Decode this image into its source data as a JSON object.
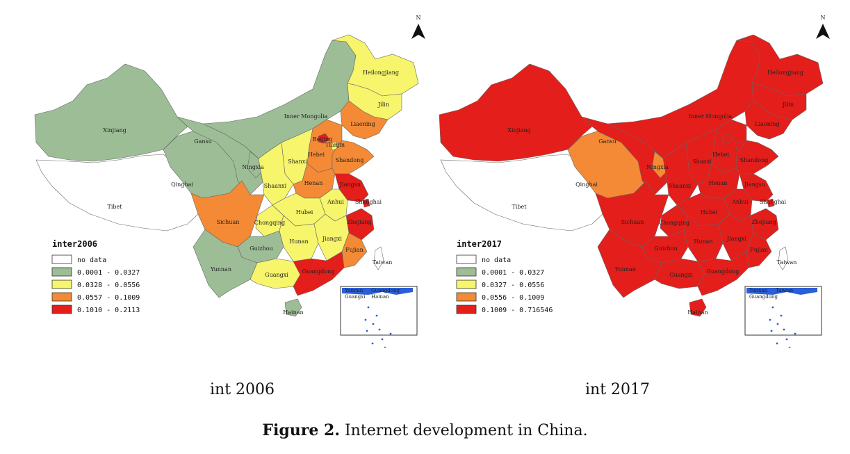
{
  "figure": {
    "number_label": "Figure 2.",
    "caption_text": " Internet development in China."
  },
  "north_label": "N",
  "maps": [
    {
      "subcaption": "int 2006",
      "legend": {
        "title": "inter2006",
        "items": [
          {
            "label": "no data",
            "color": "#ffffff"
          },
          {
            "label": "0.0001 - 0.0327",
            "color": "#9dbd96"
          },
          {
            "label": "0.0328 - 0.0556",
            "color": "#f6f56b"
          },
          {
            "label": "0.0557 - 0.1009",
            "color": "#f48a35"
          },
          {
            "label": "0.1010 - 0.2113",
            "color": "#e41e1a"
          }
        ]
      },
      "provinces": {
        "Xinjiang": {
          "label": "Xinjiang",
          "class": 1
        },
        "Tibet": {
          "label": "Tibet",
          "class": 0
        },
        "Qinghai": {
          "label": "Qinghai",
          "class": 1
        },
        "Gansu": {
          "label": "Gansu",
          "class": 1
        },
        "InnerMongolia": {
          "label": "Inner Mongolia",
          "class": 1
        },
        "Heilongjiang": {
          "label": "Heilongjiang",
          "class": 2
        },
        "Jilin": {
          "label": "Jilin",
          "class": 2
        },
        "Liaoning": {
          "label": "Liaoning",
          "class": 3
        },
        "Beijing": {
          "label": "Beijing",
          "class": 4
        },
        "Tianjin": {
          "label": "Tianjin",
          "class": 2
        },
        "Hebei": {
          "label": "Hebei",
          "class": 3
        },
        "Ningxia": {
          "label": "Ningxia",
          "class": 1
        },
        "Shanxi": {
          "label": "Shanxi",
          "class": 2
        },
        "Shandong": {
          "label": "Shandong",
          "class": 3
        },
        "Shaanxi": {
          "label": "Shaanxi",
          "class": 2
        },
        "Henan": {
          "label": "Henan",
          "class": 3
        },
        "Jiangsu": {
          "label": "Jiangsu",
          "class": 4
        },
        "Shanghai": {
          "label": "Shanghai",
          "class": 4
        },
        "Anhui": {
          "label": "Anhui",
          "class": 2
        },
        "Sichuan": {
          "label": "Sichuan",
          "class": 3
        },
        "Chongqing": {
          "label": "Chongqing",
          "class": 2
        },
        "Hubei": {
          "label": "Hubei",
          "class": 2
        },
        "Zhejiang": {
          "label": "Zhejiang",
          "class": 4
        },
        "Hunan": {
          "label": "Hunan",
          "class": 2
        },
        "Jiangxi": {
          "label": "Jiangxi",
          "class": 2
        },
        "Guizhou": {
          "label": "Guizhou",
          "class": 1
        },
        "Fujian": {
          "label": "Fujian",
          "class": 3
        },
        "Yunnan": {
          "label": "Yunnan",
          "class": 1
        },
        "Guangxi": {
          "label": "Guangxi",
          "class": 2
        },
        "Guangdong": {
          "label": "Guangdong",
          "class": 4
        },
        "Hainan": {
          "label": "Hainan",
          "class": 1
        },
        "Taiwan": {
          "label": "Taiwan",
          "class": 0
        }
      },
      "inset_labels": [
        "Yunnan",
        "Guangdong",
        "Guangxi",
        "Hainan"
      ]
    },
    {
      "subcaption": "int 2017",
      "legend": {
        "title": "inter2017",
        "items": [
          {
            "label": "no data",
            "color": "#ffffff"
          },
          {
            "label": "0.0001 - 0.0327",
            "color": "#9dbd96"
          },
          {
            "label": "0.0327 - 0.0556",
            "color": "#f6f56b"
          },
          {
            "label": "0.0556 - 0.1009",
            "color": "#f48a35"
          },
          {
            "label": "0.1009 - 0.716546",
            "color": "#e41e1a"
          }
        ]
      },
      "provinces": {
        "Xinjiang": {
          "label": "Xinjiang",
          "class": 4
        },
        "Tibet": {
          "label": "Tibet",
          "class": 0
        },
        "Qinghai": {
          "label": "Qinghai",
          "class": 3
        },
        "Gansu": {
          "label": "Gansu",
          "class": 4
        },
        "InnerMongolia": {
          "label": "Inner Mongolia",
          "class": 4
        },
        "Heilongjiang": {
          "label": "Heilongjiang",
          "class": 4
        },
        "Jilin": {
          "label": "Jilin",
          "class": 4
        },
        "Liaoning": {
          "label": "Liaoning",
          "class": 4
        },
        "Beijing": {
          "label": "",
          "class": 4
        },
        "Tianjin": {
          "label": "",
          "class": 4
        },
        "Hebei": {
          "label": "Hebei",
          "class": 4
        },
        "Ningxia": {
          "label": "Ningxia",
          "class": 3
        },
        "Shanxi": {
          "label": "Shanxi",
          "class": 4
        },
        "Shandong": {
          "label": "Shandong",
          "class": 4
        },
        "Shaanxi": {
          "label": "Shaanxi",
          "class": 4
        },
        "Henan": {
          "label": "Henan",
          "class": 4
        },
        "Jiangsu": {
          "label": "Jiangsu",
          "class": 4
        },
        "Shanghai": {
          "label": "Shanghai",
          "class": 4
        },
        "Anhui": {
          "label": "Anhui",
          "class": 4
        },
        "Sichuan": {
          "label": "Sichuan",
          "class": 4
        },
        "Chongqing": {
          "label": "Chongqing",
          "class": 4
        },
        "Hubei": {
          "label": "Hubei",
          "class": 4
        },
        "Zhejiang": {
          "label": "Zhejiang",
          "class": 4
        },
        "Hunan": {
          "label": "Hunan",
          "class": 4
        },
        "Jiangxi": {
          "label": "Jiangxi",
          "class": 4
        },
        "Guizhou": {
          "label": "Guizhou",
          "class": 4
        },
        "Fujian": {
          "label": "Fujian",
          "class": 4
        },
        "Yunnan": {
          "label": "Yunnan",
          "class": 4
        },
        "Guangxi": {
          "label": "Guangxi",
          "class": 4
        },
        "Guangdong": {
          "label": "Guangdong",
          "class": 4
        },
        "Hainan": {
          "label": "Hainan",
          "class": 4
        },
        "Taiwan": {
          "label": "Taiwan",
          "class": 0
        }
      },
      "inset_labels": [
        "Yunnan",
        "Taiwan",
        "Guangdong"
      ]
    }
  ]
}
